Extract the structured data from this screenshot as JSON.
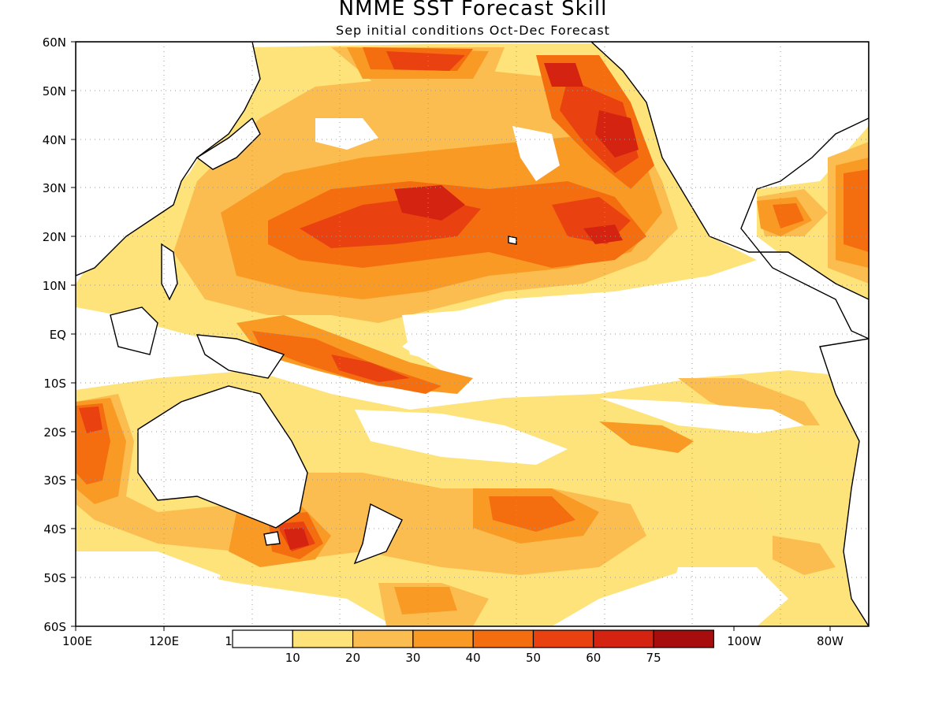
{
  "title": "NMME SST Forecast Skill",
  "subtitle": "Sep initial conditions   Oct-Dec Forecast",
  "map": {
    "lon_range": [
      "100E",
      "80W"
    ],
    "lat_range": [
      "60S",
      "60N"
    ],
    "grid": true,
    "lat_ticks": [
      "60N",
      "50N",
      "40N",
      "30N",
      "20N",
      "10N",
      "EQ",
      "10S",
      "20S",
      "30S",
      "40S",
      "50S",
      "60S"
    ],
    "lon_ticks": [
      "100E",
      "120E",
      "1",
      "100W",
      "80W"
    ]
  },
  "colorbar": {
    "labels": [
      "10",
      "20",
      "30",
      "40",
      "50",
      "60",
      "75"
    ],
    "colors": [
      "#ffffff",
      "#fde37a",
      "#fbbd4f",
      "#f99a25",
      "#f46e10",
      "#e94210",
      "#d42411",
      "#a70d0d"
    ]
  }
}
